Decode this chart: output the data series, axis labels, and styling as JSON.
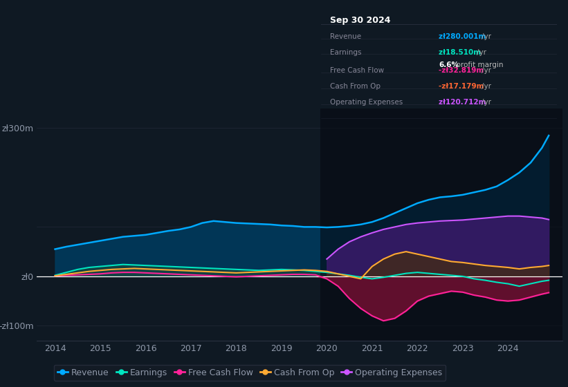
{
  "background_color": "#0f1923",
  "chart_bg": "#0f1923",
  "grid_color": "#2a3040",
  "text_color": "#9099aa",
  "ylim": [
    -130,
    340
  ],
  "years": [
    2014.0,
    2014.25,
    2014.5,
    2014.75,
    2015.0,
    2015.25,
    2015.5,
    2015.75,
    2016.0,
    2016.25,
    2016.5,
    2016.75,
    2017.0,
    2017.25,
    2017.5,
    2017.75,
    2018.0,
    2018.25,
    2018.5,
    2018.75,
    2019.0,
    2019.25,
    2019.5,
    2019.75,
    2020.0,
    2020.25,
    2020.5,
    2020.75,
    2021.0,
    2021.25,
    2021.5,
    2021.75,
    2022.0,
    2022.25,
    2022.5,
    2022.75,
    2023.0,
    2023.25,
    2023.5,
    2023.75,
    2024.0,
    2024.25,
    2024.5,
    2024.75,
    2024.9
  ],
  "revenue": [
    55,
    60,
    64,
    68,
    72,
    76,
    80,
    82,
    84,
    88,
    92,
    95,
    100,
    108,
    112,
    110,
    108,
    107,
    106,
    105,
    103,
    102,
    100,
    100,
    99,
    100,
    102,
    105,
    110,
    118,
    128,
    138,
    148,
    155,
    160,
    162,
    165,
    170,
    175,
    182,
    195,
    210,
    230,
    260,
    285
  ],
  "earnings": [
    2,
    8,
    14,
    18,
    20,
    22,
    24,
    23,
    22,
    21,
    20,
    19,
    18,
    17,
    16,
    15,
    14,
    13,
    12,
    13,
    14,
    13,
    12,
    10,
    8,
    5,
    2,
    -2,
    -5,
    -2,
    2,
    6,
    8,
    6,
    4,
    2,
    0,
    -5,
    -8,
    -12,
    -15,
    -20,
    -15,
    -10,
    -8
  ],
  "free_cash_flow": [
    1,
    2,
    3,
    4,
    5,
    7,
    8,
    8,
    7,
    6,
    5,
    4,
    3,
    2,
    1,
    0,
    -1,
    0,
    1,
    2,
    3,
    4,
    4,
    3,
    -5,
    -20,
    -45,
    -65,
    -80,
    -90,
    -85,
    -70,
    -50,
    -40,
    -35,
    -30,
    -32,
    -38,
    -42,
    -48,
    -50,
    -48,
    -42,
    -36,
    -33
  ],
  "cash_from_op": [
    1,
    4,
    7,
    10,
    12,
    14,
    15,
    16,
    15,
    14,
    13,
    12,
    11,
    10,
    9,
    8,
    7,
    8,
    9,
    10,
    11,
    12,
    13,
    12,
    10,
    5,
    0,
    -5,
    20,
    35,
    45,
    50,
    45,
    40,
    35,
    30,
    28,
    25,
    22,
    20,
    18,
    15,
    18,
    20,
    22
  ],
  "operating_expenses": [
    0,
    0,
    0,
    0,
    0,
    0,
    0,
    0,
    0,
    0,
    0,
    0,
    0,
    0,
    0,
    0,
    0,
    0,
    0,
    0,
    0,
    0,
    0,
    0,
    35,
    55,
    70,
    80,
    88,
    95,
    100,
    105,
    108,
    110,
    112,
    113,
    114,
    116,
    118,
    120,
    122,
    122,
    120,
    118,
    115
  ],
  "revenue_color": "#00aaff",
  "earnings_color": "#00e5c0",
  "free_cash_flow_color": "#ff2299",
  "cash_from_op_color": "#ffaa33",
  "operating_expenses_color": "#cc55ff",
  "revenue_fill": "#003a5c",
  "earnings_fill_pos": "#1a4a3a",
  "earnings_fill_neg": "#1a3030",
  "free_cash_flow_fill": "#6a1030",
  "operating_expenses_fill": "#3a1a6a",
  "dark_overlay_start": 2019.85,
  "tooltip_bg": "#080c10",
  "tooltip_border": "#2a3040",
  "tooltip_title": "Sep 30 2024",
  "xticks": [
    2014,
    2015,
    2016,
    2017,
    2018,
    2019,
    2020,
    2021,
    2022,
    2023,
    2024
  ],
  "legend_items": [
    {
      "label": "Revenue",
      "color": "#00aaff"
    },
    {
      "label": "Earnings",
      "color": "#00e5c0"
    },
    {
      "label": "Free Cash Flow",
      "color": "#ff2299"
    },
    {
      "label": "Cash From Op",
      "color": "#ffaa33"
    },
    {
      "label": "Operating Expenses",
      "color": "#cc55ff"
    }
  ]
}
